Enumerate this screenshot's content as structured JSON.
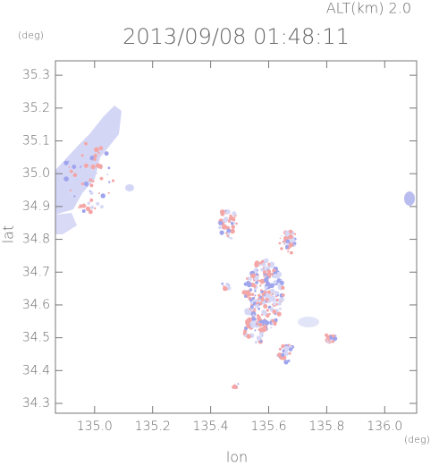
{
  "chart_data": {
    "type": "map",
    "title": "2013/09/08 01:48:11",
    "subtitle": "ALT(km) 2.0",
    "x_label": "lon",
    "y_label": "lat",
    "x_unit": "(deg)",
    "y_unit": "(deg)",
    "xlim": [
      134.865,
      136.11
    ],
    "ylim": [
      34.27,
      35.344
    ],
    "xticks": [
      {
        "value": 135,
        "label": "135.0"
      },
      135.2,
      135.4,
      135.6,
      135.8,
      {
        "value": 136,
        "label": "136.0"
      }
    ],
    "yticks": [
      34.3,
      34.4,
      34.5,
      34.6,
      34.7,
      34.8,
      34.9,
      {
        "value": 35,
        "label": "35.0"
      },
      35.1,
      35.2,
      35.3
    ]
  }
}
